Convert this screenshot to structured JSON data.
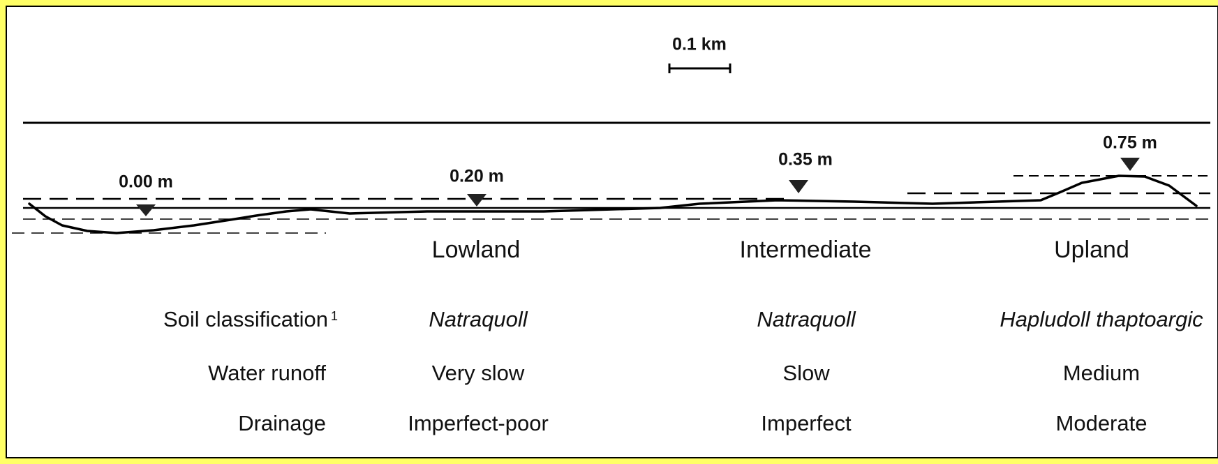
{
  "scale_bar": "0.1 km",
  "markers": [
    "0.00 m",
    "0.20 m",
    "0.35 m",
    "0.75 m"
  ],
  "zones": [
    "Lowland",
    "Intermediate",
    "Upland"
  ],
  "rows": [
    {
      "label": "Soil classification",
      "superscript": "1",
      "values": [
        "Natraquoll",
        "Natraquoll",
        "Hapludoll thaptoargic"
      ]
    },
    {
      "label": "Water runoff",
      "values": [
        "Very slow",
        "Slow",
        "Medium"
      ]
    },
    {
      "label": "Drainage",
      "values": [
        "Imperfect-poor",
        "Imperfect",
        "Moderate"
      ]
    }
  ]
}
